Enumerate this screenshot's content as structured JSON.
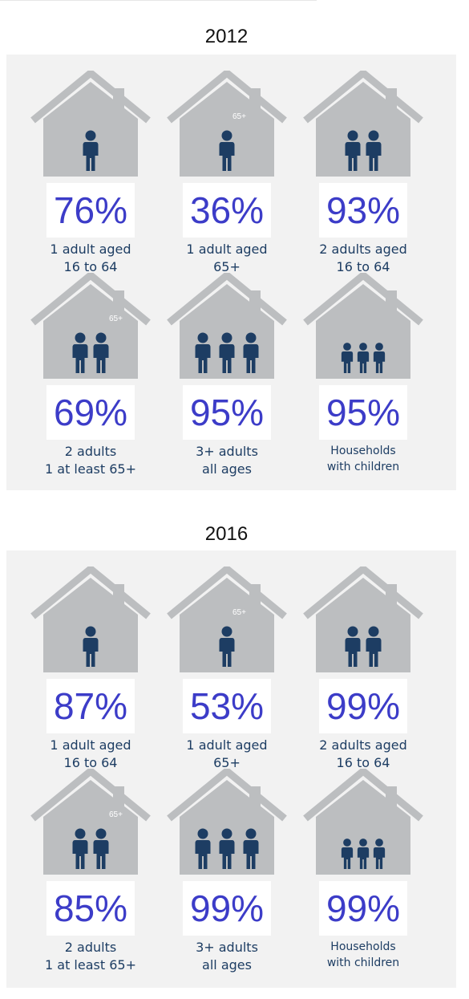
{
  "sections": [
    {
      "year": "2012",
      "items": [
        {
          "percent": "76%",
          "line1": "1 adult aged",
          "line2": "16 to 64",
          "figure": "one-adult-icon"
        },
        {
          "percent": "36%",
          "line1": "1 adult aged",
          "line2": "65+",
          "figure": "one-adult-65-icon",
          "tag": "65+"
        },
        {
          "percent": "93%",
          "line1": "2 adults aged",
          "line2": "16 to 64",
          "figure": "two-adults-icon"
        },
        {
          "percent": "69%",
          "line1": "2 adults",
          "line2": "1 at least 65+",
          "figure": "two-adults-65-icon",
          "tag": "65+"
        },
        {
          "percent": "95%",
          "line1": "3+ adults",
          "line2": "all ages",
          "figure": "three-adults-icon"
        },
        {
          "percent": "95%",
          "line1": "Households",
          "line2": "with children",
          "figure": "three-children-icon"
        }
      ]
    },
    {
      "year": "2016",
      "items": [
        {
          "percent": "87%",
          "line1": "1 adult aged",
          "line2": "16 to 64",
          "figure": "one-adult-icon"
        },
        {
          "percent": "53%",
          "line1": "1 adult aged",
          "line2": "65+",
          "figure": "one-adult-65-icon",
          "tag": "65+"
        },
        {
          "percent": "99%",
          "line1": "2 adults aged",
          "line2": "16 to 64",
          "figure": "two-adults-icon"
        },
        {
          "percent": "85%",
          "line1": "2 adults",
          "line2": "1 at least 65+",
          "figure": "two-adults-65-icon",
          "tag": "65+"
        },
        {
          "percent": "99%",
          "line1": "3+ adults",
          "line2": "all ages",
          "figure": "three-adults-icon"
        },
        {
          "percent": "99%",
          "line1": "Households",
          "line2": "with children",
          "figure": "three-children-icon"
        }
      ]
    }
  ],
  "colors": {
    "panel": "#f2f2f2",
    "house": "#bcbec0",
    "figure": "#1d3d63",
    "percent": "#3c3cc8"
  }
}
